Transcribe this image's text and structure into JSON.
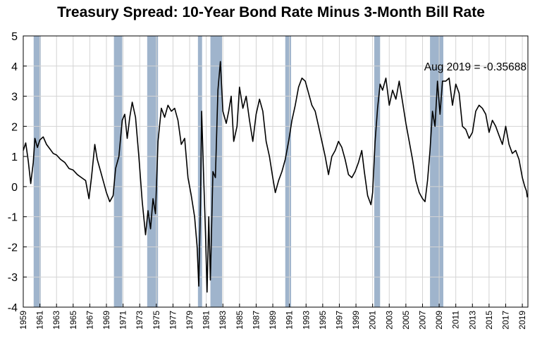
{
  "chart_data": {
    "type": "line",
    "title": "Treasury Spread: 10-Year Bond Rate Minus 3-Month Bill Rate",
    "xlabel": "",
    "ylabel": "",
    "xlim": [
      1959,
      2019.67
    ],
    "ylim": [
      -4,
      5
    ],
    "yticks": [
      5,
      4,
      3,
      2,
      1,
      0,
      -1,
      -2,
      -3,
      -4
    ],
    "xticks": [
      "1959",
      "1961",
      "1963",
      "1965",
      "1967",
      "1969",
      "1971",
      "1973",
      "1975",
      "1977",
      "1979",
      "1981",
      "1983",
      "1985",
      "1987",
      "1989",
      "1991",
      "1993",
      "1995",
      "1997",
      "1999",
      "2001",
      "2003",
      "2005",
      "2007",
      "2009",
      "2011",
      "2013",
      "2015",
      "2017",
      "2019"
    ],
    "grid": true,
    "annotation": "Aug 2019 = -0.35688",
    "recession_color": "#9fb4cc",
    "line_color": "#000000",
    "recessions": [
      [
        1960.25,
        1961.1
      ],
      [
        1969.9,
        1970.9
      ],
      [
        1973.9,
        1975.2
      ],
      [
        1980.0,
        1980.5
      ],
      [
        1981.5,
        1982.9
      ],
      [
        1990.5,
        1991.2
      ],
      [
        2001.2,
        2001.9
      ],
      [
        2007.9,
        2009.5
      ]
    ],
    "series": [
      {
        "values": [
          [
            1959.0,
            1.2
          ],
          [
            1959.3,
            1.45
          ],
          [
            1959.6,
            0.85
          ],
          [
            1959.9,
            0.1
          ],
          [
            1960.2,
            0.8
          ],
          [
            1960.4,
            1.6
          ],
          [
            1960.7,
            1.3
          ],
          [
            1961.0,
            1.55
          ],
          [
            1961.4,
            1.65
          ],
          [
            1961.8,
            1.4
          ],
          [
            1962.2,
            1.25
          ],
          [
            1962.6,
            1.1
          ],
          [
            1963.0,
            1.05
          ],
          [
            1963.5,
            0.9
          ],
          [
            1964.0,
            0.8
          ],
          [
            1964.5,
            0.6
          ],
          [
            1965.0,
            0.55
          ],
          [
            1965.5,
            0.4
          ],
          [
            1966.0,
            0.3
          ],
          [
            1966.5,
            0.2
          ],
          [
            1966.9,
            -0.4
          ],
          [
            1967.2,
            0.3
          ],
          [
            1967.6,
            1.4
          ],
          [
            1967.9,
            0.9
          ],
          [
            1968.3,
            0.5
          ],
          [
            1968.7,
            0.1
          ],
          [
            1969.0,
            -0.2
          ],
          [
            1969.4,
            -0.5
          ],
          [
            1969.8,
            -0.3
          ],
          [
            1970.1,
            0.6
          ],
          [
            1970.5,
            1.0
          ],
          [
            1970.9,
            2.2
          ],
          [
            1971.2,
            2.4
          ],
          [
            1971.5,
            1.6
          ],
          [
            1971.8,
            2.3
          ],
          [
            1972.1,
            2.8
          ],
          [
            1972.5,
            2.3
          ],
          [
            1972.9,
            1.0
          ],
          [
            1973.3,
            -0.5
          ],
          [
            1973.7,
            -1.6
          ],
          [
            1974.0,
            -0.8
          ],
          [
            1974.3,
            -1.4
          ],
          [
            1974.6,
            -0.4
          ],
          [
            1974.9,
            -0.9
          ],
          [
            1975.2,
            1.5
          ],
          [
            1975.6,
            2.6
          ],
          [
            1976.0,
            2.3
          ],
          [
            1976.4,
            2.7
          ],
          [
            1976.8,
            2.5
          ],
          [
            1977.2,
            2.6
          ],
          [
            1977.6,
            2.2
          ],
          [
            1978.0,
            1.4
          ],
          [
            1978.4,
            1.6
          ],
          [
            1978.8,
            0.3
          ],
          [
            1979.2,
            -0.3
          ],
          [
            1979.6,
            -1.0
          ],
          [
            1979.9,
            -2.0
          ],
          [
            1980.1,
            -3.3
          ],
          [
            1980.3,
            -0.6
          ],
          [
            1980.45,
            2.5
          ],
          [
            1980.7,
            0.2
          ],
          [
            1980.9,
            -1.5
          ],
          [
            1981.1,
            -3.5
          ],
          [
            1981.3,
            -1.0
          ],
          [
            1981.5,
            -3.1
          ],
          [
            1981.8,
            0.5
          ],
          [
            1982.1,
            0.3
          ],
          [
            1982.4,
            3.2
          ],
          [
            1982.7,
            4.15
          ],
          [
            1983.0,
            2.5
          ],
          [
            1983.4,
            2.1
          ],
          [
            1983.7,
            2.5
          ],
          [
            1984.0,
            3.0
          ],
          [
            1984.3,
            1.5
          ],
          [
            1984.7,
            2.0
          ],
          [
            1985.0,
            3.3
          ],
          [
            1985.4,
            2.6
          ],
          [
            1985.8,
            3.0
          ],
          [
            1986.2,
            2.2
          ],
          [
            1986.6,
            1.5
          ],
          [
            1987.0,
            2.4
          ],
          [
            1987.4,
            2.9
          ],
          [
            1987.8,
            2.5
          ],
          [
            1988.2,
            1.5
          ],
          [
            1988.6,
            1.0
          ],
          [
            1989.0,
            0.3
          ],
          [
            1989.3,
            -0.2
          ],
          [
            1989.7,
            0.2
          ],
          [
            1990.1,
            0.5
          ],
          [
            1990.5,
            0.9
          ],
          [
            1990.9,
            1.5
          ],
          [
            1991.3,
            2.2
          ],
          [
            1991.7,
            2.7
          ],
          [
            1992.1,
            3.3
          ],
          [
            1992.5,
            3.6
          ],
          [
            1992.9,
            3.5
          ],
          [
            1993.3,
            3.1
          ],
          [
            1993.7,
            2.7
          ],
          [
            1994.1,
            2.5
          ],
          [
            1994.5,
            2.0
          ],
          [
            1994.9,
            1.5
          ],
          [
            1995.3,
            1.0
          ],
          [
            1995.7,
            0.4
          ],
          [
            1996.1,
            1.0
          ],
          [
            1996.5,
            1.2
          ],
          [
            1996.9,
            1.5
          ],
          [
            1997.3,
            1.3
          ],
          [
            1997.7,
            0.9
          ],
          [
            1998.1,
            0.4
          ],
          [
            1998.5,
            0.3
          ],
          [
            1998.9,
            0.5
          ],
          [
            1999.3,
            0.8
          ],
          [
            1999.7,
            1.2
          ],
          [
            2000.0,
            0.5
          ],
          [
            2000.4,
            -0.3
          ],
          [
            2000.8,
            -0.6
          ],
          [
            2001.0,
            -0.2
          ],
          [
            2001.3,
            1.5
          ],
          [
            2001.6,
            2.6
          ],
          [
            2001.9,
            3.4
          ],
          [
            2002.2,
            3.2
          ],
          [
            2002.6,
            3.6
          ],
          [
            2003.0,
            2.7
          ],
          [
            2003.4,
            3.2
          ],
          [
            2003.8,
            2.9
          ],
          [
            2004.2,
            3.5
          ],
          [
            2004.6,
            2.8
          ],
          [
            2005.0,
            2.1
          ],
          [
            2005.4,
            1.5
          ],
          [
            2005.8,
            0.9
          ],
          [
            2006.2,
            0.2
          ],
          [
            2006.6,
            -0.2
          ],
          [
            2007.0,
            -0.4
          ],
          [
            2007.3,
            -0.5
          ],
          [
            2007.6,
            0.2
          ],
          [
            2007.9,
            1.2
          ],
          [
            2008.2,
            2.5
          ],
          [
            2008.5,
            2.0
          ],
          [
            2008.8,
            3.5
          ],
          [
            2009.1,
            2.4
          ],
          [
            2009.4,
            3.5
          ],
          [
            2009.8,
            3.5
          ],
          [
            2010.2,
            3.6
          ],
          [
            2010.6,
            2.7
          ],
          [
            2011.0,
            3.4
          ],
          [
            2011.4,
            3.1
          ],
          [
            2011.8,
            2.0
          ],
          [
            2012.2,
            1.9
          ],
          [
            2012.6,
            1.6
          ],
          [
            2013.0,
            1.8
          ],
          [
            2013.4,
            2.5
          ],
          [
            2013.8,
            2.7
          ],
          [
            2014.2,
            2.6
          ],
          [
            2014.6,
            2.4
          ],
          [
            2015.0,
            1.8
          ],
          [
            2015.4,
            2.2
          ],
          [
            2015.8,
            2.0
          ],
          [
            2016.2,
            1.7
          ],
          [
            2016.6,
            1.4
          ],
          [
            2017.0,
            2.0
          ],
          [
            2017.4,
            1.4
          ],
          [
            2017.8,
            1.1
          ],
          [
            2018.2,
            1.2
          ],
          [
            2018.6,
            0.9
          ],
          [
            2019.0,
            0.3
          ],
          [
            2019.3,
            0.0
          ],
          [
            2019.5,
            -0.15
          ],
          [
            2019.6,
            -0.35688
          ]
        ]
      }
    ]
  }
}
